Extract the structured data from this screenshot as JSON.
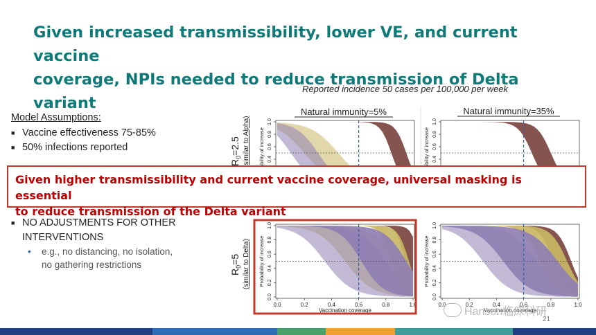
{
  "title_line1": "Given increased transmissibility, lower VE, and current vaccine",
  "title_line2": "coverage, NPIs needed to reduce transmission of Delta variant",
  "subtitle": "Reported incidence 50 cases per 100,000 per week",
  "assumptions": {
    "heading": "Model Assumptions:",
    "items": [
      {
        "text": "Vaccine effectiveness 75-85%"
      },
      {
        "text": "50% infections reported"
      }
    ],
    "item_no_adj_line1": "NO ADJUSTMENTS FOR OTHER",
    "item_no_adj_line2": "INTERVENTIONS",
    "sub_line1": "e.g., no distancing, no isolation,",
    "sub_line2": "no gathering restrictions"
  },
  "panels": {
    "col_left": "Natural immunity=5%",
    "col_right": "Natural immunity=35%",
    "row_top_r0": "R",
    "row_top_r0_sub": "0",
    "row_top_r0_val": "=2.5",
    "row_top_note": "(similar to Alpha)",
    "row_bottom_r0_val": "=5",
    "row_bottom_note": "(similar to Delta)",
    "ylabel": "Probability of increase",
    "xlabel": "Vaccination coverage",
    "y_ticks": [
      "0.0",
      "0.2",
      "0.4",
      "0.6",
      "0.8",
      "1.0"
    ],
    "x_ticks": [
      "0.0",
      "0.2",
      "0.4",
      "0.6",
      "0.8",
      "1.0"
    ]
  },
  "chart_data": {
    "type": "area",
    "xlabel": "Vaccination coverage",
    "ylabel": "Probability of increase",
    "xlim": [
      0,
      1
    ],
    "ylim": [
      0,
      1
    ],
    "reference_vline_x": 0.6,
    "reference_hline_y": 0.5,
    "colors": {
      "band_brown": "#7b4540",
      "band_gold": "#c9b764",
      "band_purple": "#8f7fb3"
    },
    "panels": [
      {
        "r0": "2.5",
        "natural_immunity": "5%"
      },
      {
        "r0": "2.5",
        "natural_immunity": "35%"
      },
      {
        "r0": "5",
        "natural_immunity": "5%",
        "highlighted": true
      },
      {
        "r0": "5",
        "natural_immunity": "35%"
      }
    ]
  },
  "banner": {
    "line1": "Given higher transmissibility and current vaccine coverage, universal masking is essential",
    "line2": "to reduce transmission of the Delta variant"
  },
  "page_number": "21",
  "watermark": "Hanson临床科研",
  "footer_colors": [
    "#1f3f80",
    "#2e6db5",
    "#48a06a",
    "#f0a030",
    "#3f9c9a",
    "#1f3f80"
  ]
}
